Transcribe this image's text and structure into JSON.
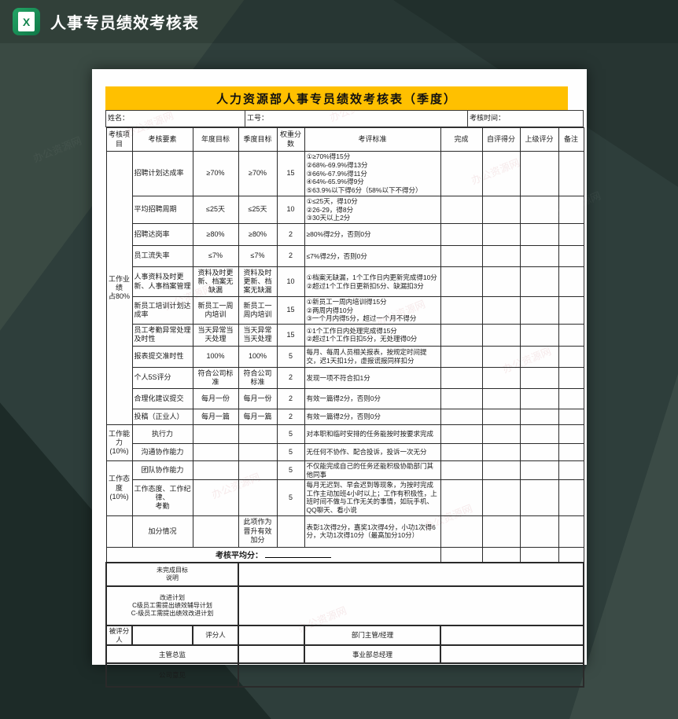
{
  "titlebar": {
    "title": "人事专员绩效考核表"
  },
  "colors": {
    "banner_yellow": "#ffc000",
    "excel_green": "#14854f",
    "background_dark": "#2e3e3b"
  },
  "watermark": {
    "text": "办公资源网"
  },
  "sheet": {
    "banner": "人力资源部人事专员绩效考核表（季度）",
    "info": {
      "name_label": "姓名：",
      "id_label": "工号：",
      "time_label": "考核时间："
    },
    "table": {
      "headers": [
        "考核项目",
        "考核要素",
        "年度目标",
        "季度目标",
        "权重分数",
        "考评标准",
        "完成",
        "自评得分",
        "上级评分",
        "备注"
      ],
      "categories": [
        {
          "label": "工作业绩\n占80%",
          "span": 11
        },
        {
          "label": "工作能力\n(10%)",
          "span": 2
        },
        {
          "label": "工作态度\n(10%)",
          "span": 2
        },
        {
          "label": "",
          "span": 1
        }
      ],
      "rows": [
        {
          "element": "招聘计划达成率",
          "annual": "≥70%",
          "quarter": "≥70%",
          "weight": "15",
          "standard": "①≥70%得15分\n②68%-69.9%得13分\n③66%-67.9%得11分\n④64%-65.9%得9分\n⑤63.9%以下得6分（58%以下不得分）"
        },
        {
          "element": "平均招聘周期",
          "annual": "≤25天",
          "quarter": "≤25天",
          "weight": "10",
          "standard": "①≤25天，得10分\n②26-29，得8分\n③30天以上2分"
        },
        {
          "element": "招聘达岗率",
          "annual": "≥80%",
          "quarter": "≥80%",
          "weight": "2",
          "standard": "≥80%得2分，否则0分"
        },
        {
          "element": "员工流失率",
          "annual": "≤7%",
          "quarter": "≤7%",
          "weight": "2",
          "standard": "≤7%得2分，否则0分"
        },
        {
          "element": "人事资料及时更新、人事档案管理",
          "annual": "资料及时更新、档案无缺漏",
          "quarter": "资料及时更新、档案无缺漏",
          "weight": "10",
          "standard": "①档案无缺漏，1个工作日内更新完成得10分\n②超过1个工作日更新扣5分、缺漏扣3分"
        },
        {
          "element": "新员工培训计划达成率",
          "annual": "新员工一周内培训",
          "quarter": "新员工一周内培训",
          "weight": "15",
          "standard": "①新员工一周内培训得15分\n②两周内得10分\n③一个月内得5分，超过一个月不得分"
        },
        {
          "element": "员工考勤异常处理及时性",
          "annual": "当天异常当天处理",
          "quarter": "当天异常当天处理",
          "weight": "15",
          "standard": "①1个工作日内处理完成得15分\n②超过1个工作日扣5分，无处理得0分"
        },
        {
          "element": "报表提交准时性",
          "annual": "100%",
          "quarter": "100%",
          "weight": "5",
          "standard": "每月、每周人员相关报表，按规定时间提交，迟1天扣1分，虚报谎报同样扣分"
        },
        {
          "element": "个人5S评分",
          "annual": "符合公司标准",
          "quarter": "符合公司标准",
          "weight": "2",
          "standard": "发现一项不符合扣1分"
        },
        {
          "element": "合理化建议提交",
          "annual": "每月一份",
          "quarter": "每月一份",
          "weight": "2",
          "standard": "有效一篇得2分，否则0分"
        },
        {
          "element": "投稿（正业人）",
          "annual": "每月一篇",
          "quarter": "每月一篇",
          "weight": "2",
          "standard": "有效一篇得2分，否则0分"
        },
        {
          "element": "执行力",
          "annual": "",
          "quarter": "",
          "weight": "5",
          "standard": "对本职和临时安排的任务能按时按要求完成"
        },
        {
          "element": "沟通协作能力",
          "annual": "",
          "quarter": "",
          "weight": "5",
          "standard": "无任何不协作、配合投诉，投诉一次无分"
        },
        {
          "element": "团队协作能力",
          "annual": "",
          "quarter": "",
          "weight": "5",
          "standard": "不仅能完成自己的任务还能积极协助部门其他同事"
        },
        {
          "element": "工作态度、工作纪律、\n考勤",
          "annual": "",
          "quarter": "",
          "weight": "5",
          "standard": "每月无迟到、早会迟到等现象，为按时完成工作主动加班4小时以上；工作有积极性，上班时间不做与工作无关的事情，如玩手机、QQ聊天、看小说"
        },
        {
          "element": "加分情况",
          "annual": "",
          "quarter": "此项作为晋升有效加分",
          "weight": "",
          "standard": "表彰1次得2分，嘉奖1次得4分，小功1次得6分，大功1次得10分（最高加分10分）"
        }
      ],
      "average_label": "考核平均分：",
      "notes": [
        {
          "label": "未完成目标\n说明"
        },
        {
          "label": "改进计划\nC级员工需提出绩效辅导计划\nC-级员工需提出绩效改进计划"
        }
      ],
      "signatures": [
        {
          "cells": [
            {
              "text": "被评分人",
              "span": 1
            },
            {
              "text": "",
              "span": 1
            },
            {
              "text": "评分人",
              "span": 1
            },
            {
              "text": "",
              "span": 2
            },
            {
              "text": "部门主管/经理",
              "span": 1
            },
            {
              "text": "",
              "span": 4
            }
          ]
        },
        {
          "cells": [
            {
              "text": "主管总监",
              "span": 3
            },
            {
              "text": "",
              "span": 2
            },
            {
              "text": "事业部总经理",
              "span": 1
            },
            {
              "text": "",
              "span": 4
            }
          ]
        },
        {
          "cells": [
            {
              "text": "公司意见",
              "span": 3
            },
            {
              "text": "",
              "span": 7
            }
          ]
        }
      ]
    }
  }
}
